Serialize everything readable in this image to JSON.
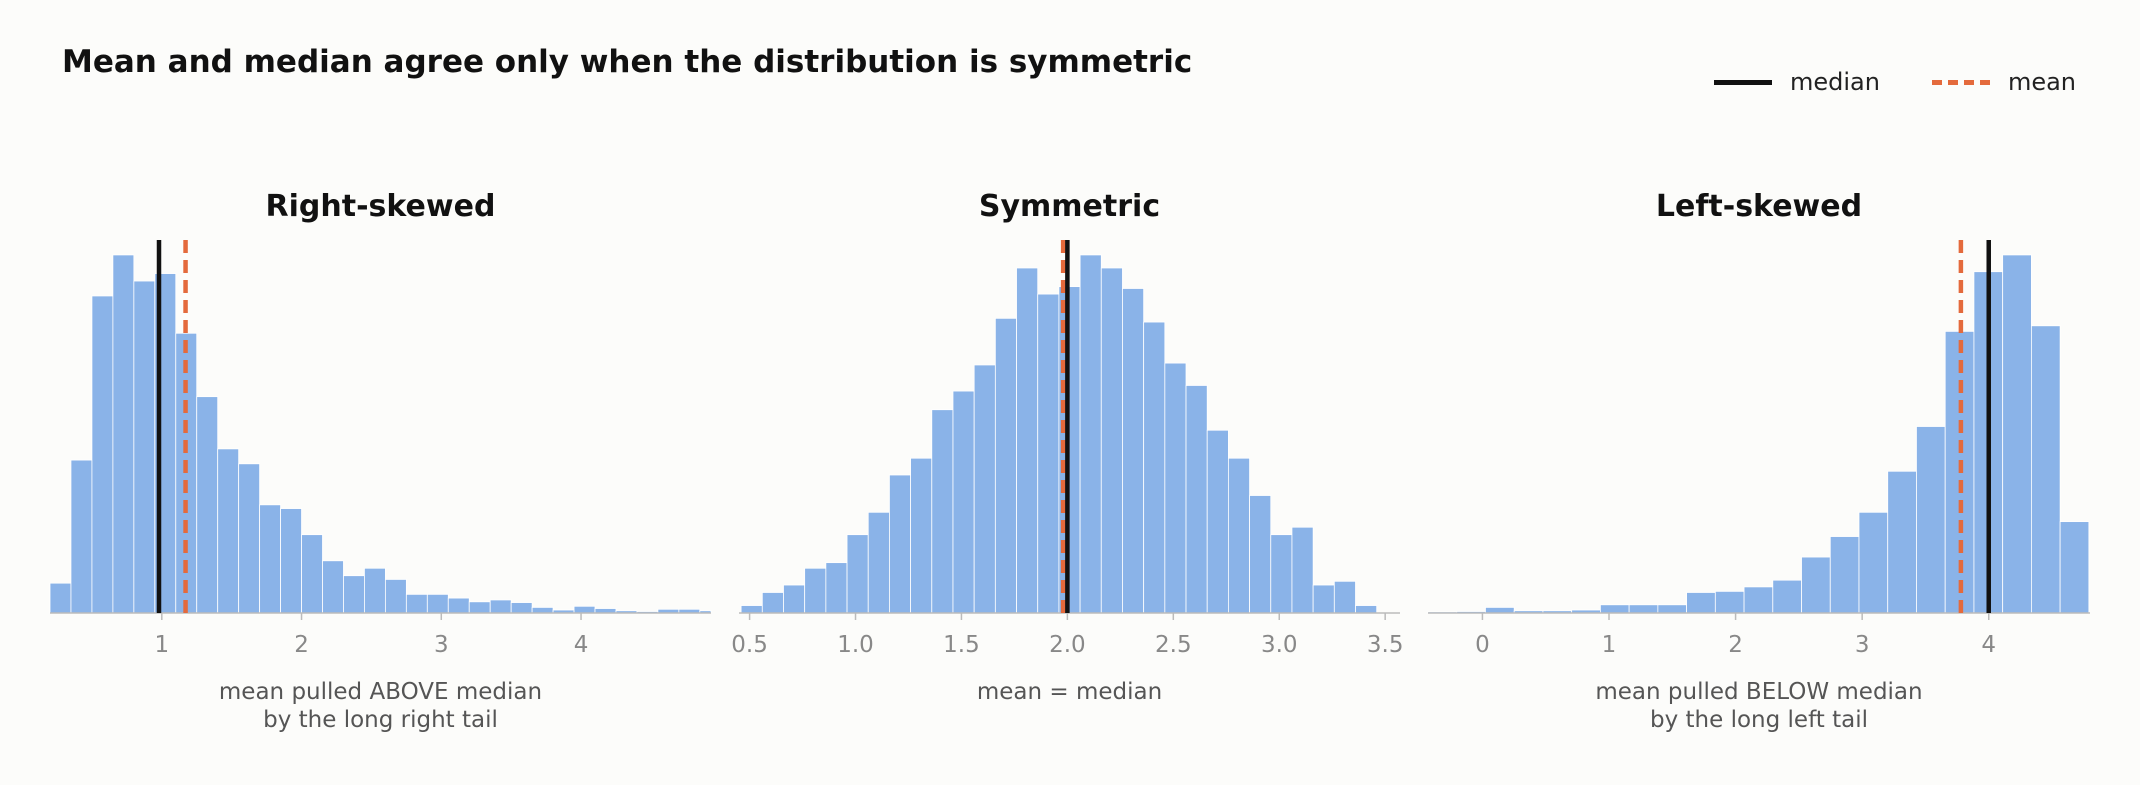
{
  "figure": {
    "title": "Mean and median agree only when the distribution is symmetric",
    "legend": {
      "placement": "top-right",
      "entries": [
        {
          "key": "median",
          "label": "median",
          "color": "#111111",
          "style": "solid"
        },
        {
          "key": "mean",
          "label": "mean",
          "color": "#e46a3c",
          "style": "dashed"
        }
      ]
    }
  },
  "colors": {
    "bar": "#8ab3e8",
    "bar_edge": "#ffffff",
    "median": "#111111",
    "mean": "#e46a3c",
    "tick_label": "#888888",
    "axis": "#bbbbbb",
    "annotation": "#555555"
  },
  "chart_data": [
    {
      "type": "bar",
      "title": "Right-skewed",
      "annotation": [
        "mean pulled ABOVE median",
        "by the long right tail"
      ],
      "xlim": [
        0.2,
        4.93
      ],
      "ylim": [
        0,
        1
      ],
      "bin_start": 0.2,
      "bin_width": 0.15,
      "values": [
        0.08,
        0.41,
        0.85,
        0.96,
        0.89,
        0.91,
        0.75,
        0.58,
        0.44,
        0.4,
        0.29,
        0.28,
        0.21,
        0.14,
        0.1,
        0.12,
        0.09,
        0.05,
        0.05,
        0.04,
        0.03,
        0.035,
        0.028,
        0.015,
        0.008,
        0.018,
        0.012,
        0.006,
        0.004,
        0.01,
        0.01,
        0.006
      ],
      "x_ticks": [
        1,
        2,
        3,
        4
      ],
      "x_tick_labels": [
        "1",
        "2",
        "3",
        "4"
      ],
      "median": 0.98,
      "mean": 1.17,
      "grid": false
    },
    {
      "type": "bar",
      "title": "Symmetric",
      "annotation": [
        "mean = median"
      ],
      "xlim": [
        0.45,
        3.57
      ],
      "ylim": [
        0,
        1
      ],
      "bin_start": 0.46,
      "bin_width": 0.1,
      "values": [
        0.02,
        0.055,
        0.075,
        0.12,
        0.135,
        0.21,
        0.27,
        0.37,
        0.415,
        0.545,
        0.595,
        0.665,
        0.79,
        0.925,
        0.855,
        0.875,
        0.96,
        0.925,
        0.87,
        0.78,
        0.67,
        0.61,
        0.49,
        0.415,
        0.315,
        0.21,
        0.23,
        0.075,
        0.085,
        0.02
      ],
      "x_ticks": [
        0.5,
        1.0,
        1.5,
        2.0,
        2.5,
        3.0,
        3.5
      ],
      "x_tick_labels": [
        "0.5",
        "1.0",
        "1.5",
        "2.0",
        "2.5",
        "3.0",
        "3.5"
      ],
      "median": 2.0,
      "mean": 1.98,
      "grid": false
    },
    {
      "type": "bar",
      "title": "Left-skewed",
      "annotation": [
        "mean pulled BELOW median",
        "by the long left tail"
      ],
      "xlim": [
        -0.43,
        4.8
      ],
      "ylim": [
        0,
        1
      ],
      "bin_start": -0.43,
      "bin_width": 0.227,
      "values": [
        0.003,
        0.004,
        0.015,
        0.006,
        0.006,
        0.008,
        0.022,
        0.022,
        0.022,
        0.055,
        0.058,
        0.07,
        0.088,
        0.15,
        0.205,
        0.27,
        0.38,
        0.5,
        0.755,
        0.915,
        0.96,
        0.77,
        0.245
      ],
      "x_ticks": [
        0,
        1,
        2,
        3,
        4
      ],
      "x_tick_labels": [
        "0",
        "1",
        "2",
        "3",
        "4"
      ],
      "median": 4.0,
      "mean": 3.78,
      "grid": false
    }
  ]
}
